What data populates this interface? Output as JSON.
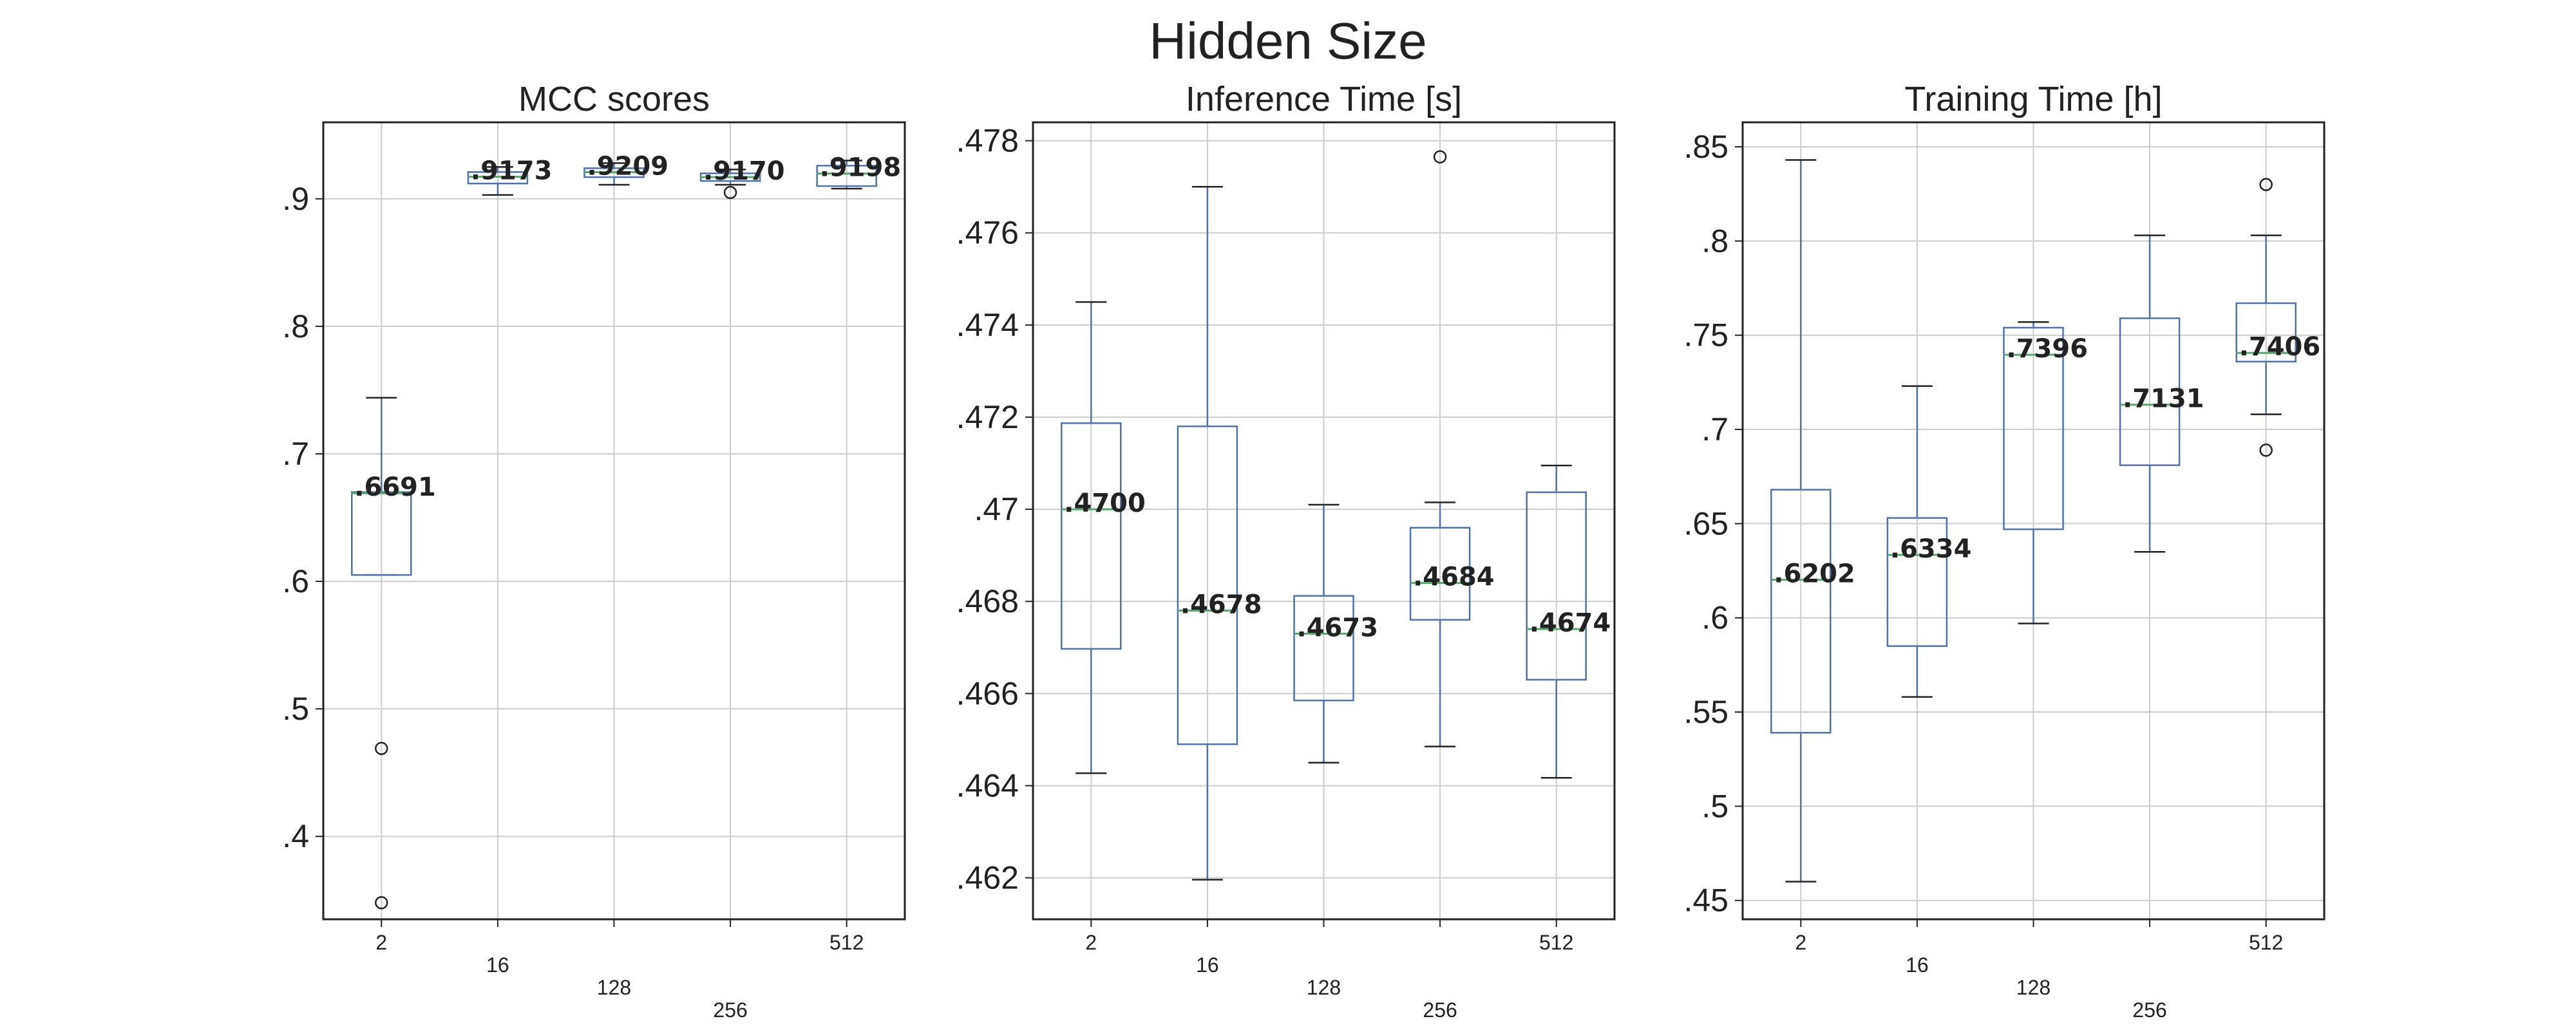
{
  "figure": {
    "title": "Hidden Size"
  },
  "colors": {
    "box": "#4c72b0",
    "median": "#55a868",
    "whisker": "#222222",
    "grid": "#cccccc",
    "axis": "#222222"
  },
  "chart_data": [
    {
      "type": "box",
      "title": "MCC scores",
      "categories": [
        "2",
        "16",
        "128",
        "256",
        "512"
      ],
      "y_tick_values": [
        0.4,
        0.5,
        0.6,
        0.7,
        0.8,
        0.9
      ],
      "y_tick_labels": [
        ".4",
        ".5",
        ".6",
        ".7",
        ".8",
        ".9"
      ],
      "ylim": [
        0.335,
        0.96
      ],
      "grid": true,
      "boxes": [
        {
          "category": "2",
          "whisker_low": 0.605,
          "q1": 0.605,
          "median": 0.6691,
          "q3": 0.67,
          "whisker_high": 0.744,
          "outliers": [
            0.469,
            0.348
          ],
          "median_label": ".6691"
        },
        {
          "category": "16",
          "whisker_low": 0.903,
          "q1": 0.912,
          "median": 0.9173,
          "q3": 0.921,
          "whisker_high": 0.925,
          "outliers": [],
          "median_label": ".9173"
        },
        {
          "category": "128",
          "whisker_low": 0.911,
          "q1": 0.917,
          "median": 0.9209,
          "q3": 0.924,
          "whisker_high": 0.928,
          "outliers": [],
          "median_label": ".9209"
        },
        {
          "category": "256",
          "whisker_low": 0.911,
          "q1": 0.914,
          "median": 0.917,
          "q3": 0.92,
          "whisker_high": 0.923,
          "outliers": [
            0.905
          ],
          "median_label": ".9170"
        },
        {
          "category": "512",
          "whisker_low": 0.908,
          "q1": 0.91,
          "median": 0.9198,
          "q3": 0.926,
          "whisker_high": 0.93,
          "outliers": [],
          "median_label": ".9198"
        }
      ]
    },
    {
      "type": "box",
      "title": "Inference Time [s]",
      "categories": [
        "2",
        "16",
        "128",
        "256",
        "512"
      ],
      "y_tick_values": [
        0.462,
        0.464,
        0.466,
        0.468,
        0.47,
        0.472,
        0.474,
        0.476,
        0.478
      ],
      "y_tick_labels": [
        ".462",
        ".464",
        ".466",
        ".468",
        ".47",
        ".472",
        ".474",
        ".476",
        ".478"
      ],
      "ylim": [
        0.4611,
        0.4784
      ],
      "grid": true,
      "boxes": [
        {
          "category": "2",
          "whisker_low": 0.46427,
          "q1": 0.46697,
          "median": 0.47,
          "q3": 0.47187,
          "whisker_high": 0.4745,
          "outliers": [],
          "median_label": ".4700"
        },
        {
          "category": "16",
          "whisker_low": 0.46196,
          "q1": 0.4649,
          "median": 0.4678,
          "q3": 0.4718,
          "whisker_high": 0.477,
          "outliers": [],
          "median_label": ".4678"
        },
        {
          "category": "128",
          "whisker_low": 0.4645,
          "q1": 0.46585,
          "median": 0.4673,
          "q3": 0.46812,
          "whisker_high": 0.4701,
          "outliers": [],
          "median_label": ".4673"
        },
        {
          "category": "256",
          "whisker_low": 0.46485,
          "q1": 0.4676,
          "median": 0.4684,
          "q3": 0.4696,
          "whisker_high": 0.47015,
          "outliers": [
            0.47765
          ],
          "median_label": ".4684"
        },
        {
          "category": "512",
          "whisker_low": 0.46417,
          "q1": 0.4663,
          "median": 0.4674,
          "q3": 0.47037,
          "whisker_high": 0.47095,
          "outliers": [],
          "median_label": ".4674"
        }
      ]
    },
    {
      "type": "box",
      "title": "Training Time [h]",
      "categories": [
        "2",
        "16",
        "128",
        "256",
        "512"
      ],
      "y_tick_values": [
        0.45,
        0.5,
        0.55,
        0.6,
        0.65,
        0.7,
        0.75,
        0.8,
        0.85
      ],
      "y_tick_labels": [
        ".45",
        ".5",
        ".55",
        ".6",
        ".65",
        ".7",
        ".75",
        ".8",
        ".85"
      ],
      "ylim": [
        0.44,
        0.863
      ],
      "grid": true,
      "boxes": [
        {
          "category": "2",
          "whisker_low": 0.46,
          "q1": 0.539,
          "median": 0.6202,
          "q3": 0.668,
          "whisker_high": 0.843,
          "outliers": [],
          "median_label": ".6202"
        },
        {
          "category": "16",
          "whisker_low": 0.558,
          "q1": 0.585,
          "median": 0.6334,
          "q3": 0.653,
          "whisker_high": 0.723,
          "outliers": [],
          "median_label": ".6334"
        },
        {
          "category": "128",
          "whisker_low": 0.597,
          "q1": 0.647,
          "median": 0.7396,
          "q3": 0.754,
          "whisker_high": 0.757,
          "outliers": [],
          "median_label": ".7396"
        },
        {
          "category": "256",
          "whisker_low": 0.635,
          "q1": 0.681,
          "median": 0.7131,
          "q3": 0.759,
          "whisker_high": 0.803,
          "outliers": [],
          "median_label": ".7131"
        },
        {
          "category": "512",
          "whisker_low": 0.708,
          "q1": 0.736,
          "median": 0.7406,
          "q3": 0.767,
          "whisker_high": 0.803,
          "outliers": [
            0.83,
            0.689
          ],
          "median_label": ".7406"
        }
      ]
    }
  ]
}
